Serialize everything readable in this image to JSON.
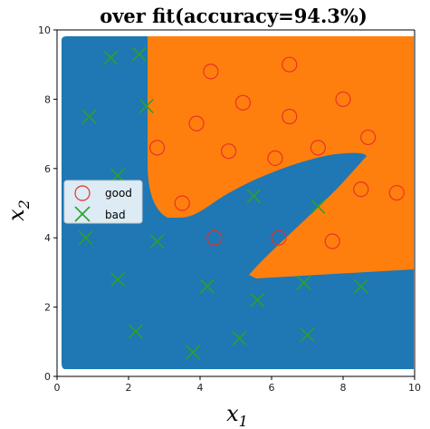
{
  "chart_data": {
    "type": "scatter",
    "title": "over fit(accuracy=94.3%)",
    "xlabel": "x",
    "xlabel_sub": "1",
    "ylabel": "x",
    "ylabel_sub": "2",
    "xlim": [
      0,
      10
    ],
    "ylim": [
      0,
      10
    ],
    "xticks": [
      0,
      2,
      4,
      6,
      8,
      10
    ],
    "yticks": [
      0,
      2,
      4,
      6,
      8,
      10
    ],
    "grid": false,
    "legend_position": "center-left",
    "region_colors": {
      "bad": "#1f77b4",
      "good": "#ff7f0e"
    },
    "series": [
      {
        "name": "good",
        "marker": "circle",
        "color": "#e8312a",
        "points": [
          [
            4.3,
            8.8
          ],
          [
            6.5,
            9.0
          ],
          [
            5.2,
            7.9
          ],
          [
            8.0,
            8.0
          ],
          [
            3.9,
            7.3
          ],
          [
            6.5,
            7.5
          ],
          [
            2.8,
            6.6
          ],
          [
            4.8,
            6.5
          ],
          [
            7.3,
            6.6
          ],
          [
            8.7,
            6.9
          ],
          [
            6.1,
            6.3
          ],
          [
            3.5,
            5.0
          ],
          [
            8.5,
            5.4
          ],
          [
            9.5,
            5.3
          ],
          [
            4.4,
            4.0
          ],
          [
            6.2,
            4.0
          ],
          [
            7.7,
            3.9
          ]
        ]
      },
      {
        "name": "bad",
        "marker": "x",
        "color": "#2ca02c",
        "points": [
          [
            1.5,
            9.2
          ],
          [
            2.3,
            9.3
          ],
          [
            0.9,
            7.5
          ],
          [
            2.5,
            7.8
          ],
          [
            1.7,
            5.8
          ],
          [
            5.5,
            5.2
          ],
          [
            7.3,
            4.9
          ],
          [
            0.8,
            4.0
          ],
          [
            2.8,
            3.9
          ],
          [
            1.7,
            2.8
          ],
          [
            4.2,
            2.6
          ],
          [
            5.6,
            2.2
          ],
          [
            6.9,
            2.7
          ],
          [
            8.5,
            2.6
          ],
          [
            2.2,
            1.3
          ],
          [
            3.8,
            0.7
          ],
          [
            5.1,
            1.1
          ],
          [
            7.0,
            1.2
          ]
        ]
      }
    ]
  }
}
